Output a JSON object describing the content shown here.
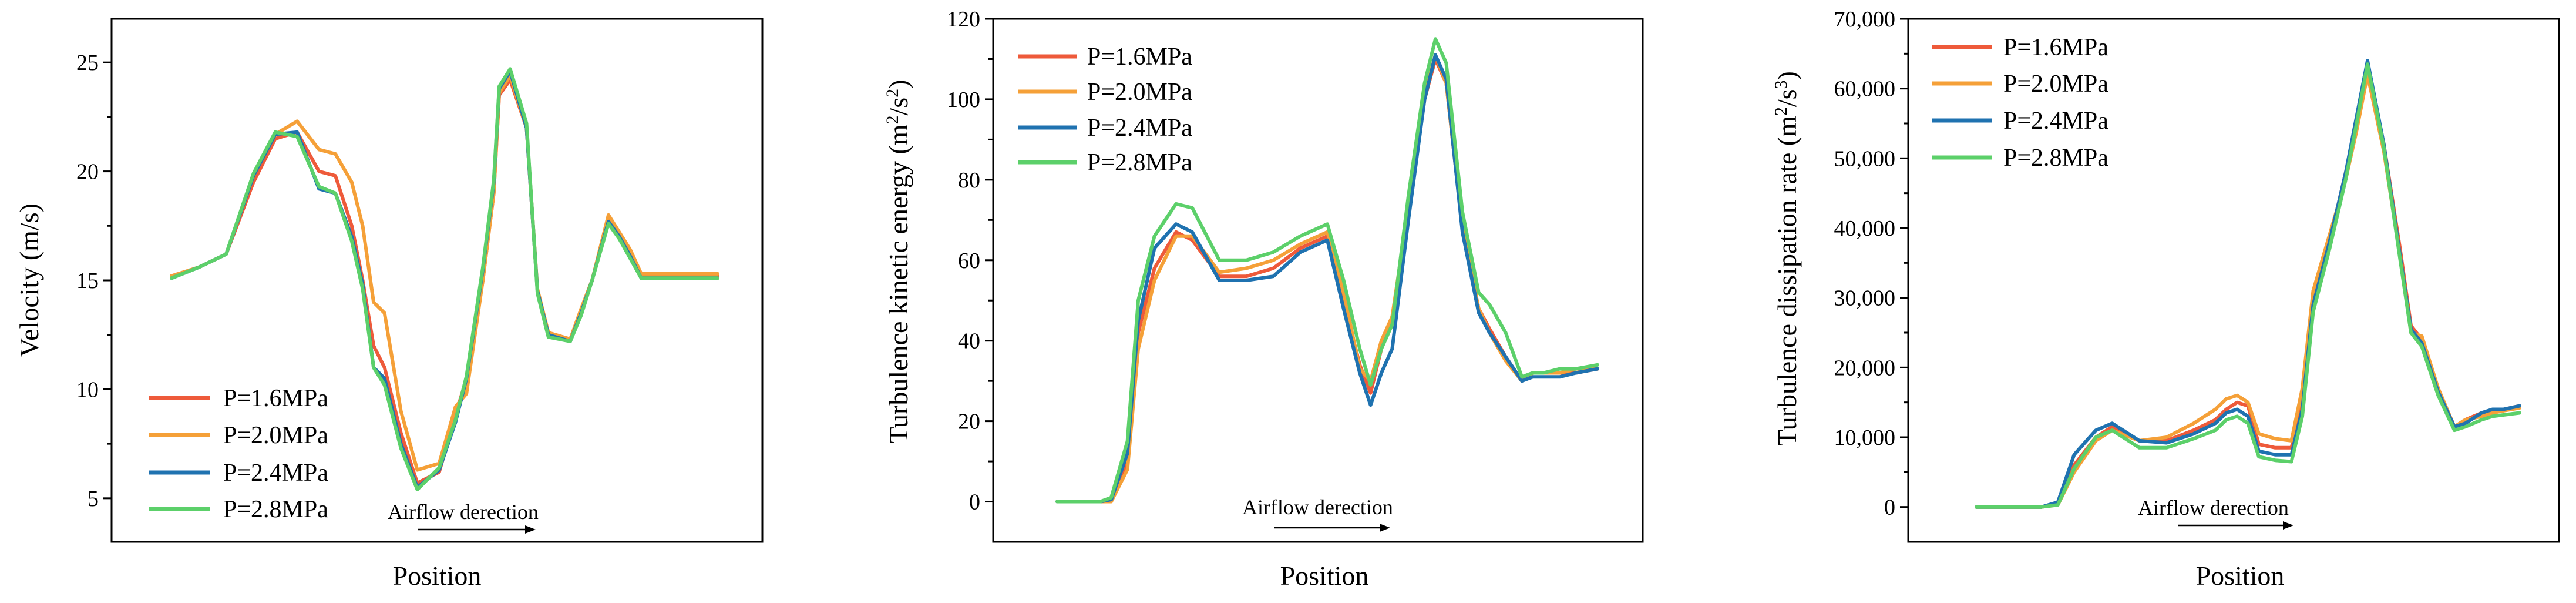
{
  "colors": {
    "P=1.6MPa": "#EE5A3A",
    "P=2.0MPa": "#F5A038",
    "P=2.4MPa": "#1F72B0",
    "P=2.8MPa": "#5CD06A",
    "axis": "#000000"
  },
  "chart_data": [
    {
      "type": "line",
      "title": "",
      "xlabel": "Position",
      "ylabel": "Velocity (m/s)",
      "ylim": [
        3,
        27
      ],
      "yticks": [
        5,
        10,
        15,
        20,
        25
      ],
      "ytick_labels": [
        "5",
        "10",
        "15",
        "20",
        "25"
      ],
      "xlim": [
        0,
        100
      ],
      "x_tick_labels": [],
      "legend": [
        "P=1.6MPa",
        "P=2.0MPa",
        "P=2.4MPa",
        "P=2.8MPa"
      ],
      "legend_position": "bottom-left",
      "annotation": "Airflow derection",
      "series": [
        {
          "name": "P=1.6MPa",
          "x": [
            0,
            5,
            10,
            15,
            19,
            23,
            27,
            30,
            33,
            35,
            37,
            39,
            42,
            45,
            49,
            52,
            54,
            57,
            59,
            60,
            62,
            65,
            67,
            69,
            73,
            75,
            77,
            80,
            82,
            84,
            86,
            88,
            90,
            92,
            95,
            97,
            100
          ],
          "y": [
            15.2,
            15.6,
            16.2,
            19.5,
            21.5,
            21.8,
            20,
            19.8,
            17.5,
            15,
            12,
            11,
            8,
            5.7,
            6.2,
            8.8,
            10.5,
            15,
            19,
            23.5,
            24.2,
            22,
            14.5,
            12.6,
            12.3,
            13.5,
            15,
            17.8,
            17,
            16.2,
            15.2,
            15.2,
            15.2,
            15.2,
            15.2,
            15.2,
            15.2
          ]
        },
        {
          "name": "P=2.0MPa",
          "x": [
            0,
            5,
            10,
            15,
            19,
            23,
            27,
            30,
            33,
            35,
            37,
            39,
            42,
            45,
            49,
            52,
            54,
            57,
            59,
            60,
            62,
            65,
            67,
            69,
            73,
            75,
            77,
            80,
            82,
            84,
            86,
            88,
            90,
            92,
            95,
            97,
            100
          ],
          "y": [
            15.2,
            15.6,
            16.2,
            19.8,
            21.7,
            22.3,
            21,
            20.8,
            19.5,
            17.5,
            14,
            13.5,
            9,
            6.3,
            6.6,
            9.2,
            9.8,
            15,
            19,
            23.6,
            24.4,
            22,
            14.6,
            12.6,
            12.3,
            13.7,
            15,
            18,
            17.2,
            16.4,
            15.3,
            15.3,
            15.3,
            15.3,
            15.3,
            15.3,
            15.3
          ]
        },
        {
          "name": "P=2.4MPa",
          "x": [
            0,
            5,
            10,
            15,
            19,
            23,
            27,
            30,
            33,
            35,
            37,
            39,
            42,
            45,
            49,
            52,
            54,
            57,
            59,
            60,
            62,
            65,
            67,
            69,
            73,
            75,
            77,
            80,
            82,
            84,
            86,
            88,
            90,
            92,
            95,
            97,
            100
          ],
          "y": [
            15.1,
            15.6,
            16.2,
            19.8,
            21.7,
            21.8,
            19.2,
            19,
            17,
            14.8,
            11,
            10.5,
            7.5,
            5.5,
            6.3,
            8.5,
            10.5,
            15.5,
            19.5,
            23.8,
            24.6,
            22,
            14.5,
            12.5,
            12.2,
            13.5,
            15,
            17.7,
            17,
            16.1,
            15.1,
            15.1,
            15.1,
            15.1,
            15.1,
            15.1,
            15.1
          ]
        },
        {
          "name": "P=2.8MPa",
          "x": [
            0,
            5,
            10,
            15,
            19,
            23,
            27,
            30,
            33,
            35,
            37,
            39,
            42,
            45,
            49,
            52,
            54,
            57,
            59,
            60,
            62,
            65,
            67,
            69,
            73,
            75,
            77,
            80,
            82,
            84,
            86,
            88,
            90,
            92,
            95,
            97,
            100
          ],
          "y": [
            15.1,
            15.6,
            16.2,
            19.9,
            21.8,
            21.6,
            19.3,
            19,
            16.8,
            14.6,
            11,
            10.2,
            7.3,
            5.4,
            6.4,
            8.6,
            10.6,
            15.6,
            19.6,
            23.9,
            24.7,
            22.2,
            14.4,
            12.4,
            12.2,
            13.4,
            15,
            17.6,
            16.9,
            16,
            15.1,
            15.1,
            15.1,
            15.1,
            15.1,
            15.1,
            15.1
          ]
        }
      ]
    },
    {
      "type": "line",
      "title": "",
      "xlabel": "Position",
      "ylabel": "Turbulence kinetic energy (m²/s²)",
      "ylim": [
        -10,
        120
      ],
      "yticks": [
        0,
        20,
        40,
        60,
        80,
        100,
        120
      ],
      "ytick_labels": [
        "0",
        "20",
        "40",
        "60",
        "80",
        "100",
        "120"
      ],
      "xlim": [
        0,
        100
      ],
      "x_tick_labels": [],
      "legend": [
        "P=1.6MPa",
        "P=2.0MPa",
        "P=2.4MPa",
        "P=2.8MPa"
      ],
      "legend_position": "top-left",
      "annotation": "Airflow derection",
      "series": [
        {
          "name": "P=1.6MPa",
          "x": [
            0,
            5,
            8,
            10,
            13,
            15,
            18,
            22,
            25,
            30,
            35,
            40,
            45,
            50,
            53,
            56,
            58,
            60,
            62,
            65,
            68,
            70,
            72,
            75,
            78,
            80,
            83,
            86,
            88,
            90,
            93,
            96,
            100
          ],
          "y": [
            0,
            0,
            0,
            0.5,
            10,
            42,
            58,
            67,
            65,
            56,
            56,
            58,
            63,
            66,
            50,
            34,
            27,
            38,
            45,
            72,
            100,
            110,
            104,
            68,
            48,
            43,
            36,
            30,
            32,
            32,
            32,
            32,
            33
          ]
        },
        {
          "name": "P=2.0MPa",
          "x": [
            0,
            5,
            8,
            10,
            13,
            15,
            18,
            22,
            25,
            30,
            35,
            40,
            45,
            50,
            53,
            56,
            58,
            60,
            62,
            65,
            68,
            70,
            72,
            75,
            78,
            80,
            83,
            86,
            88,
            90,
            93,
            96,
            100
          ],
          "y": [
            0,
            0,
            0,
            0,
            8,
            38,
            55,
            66,
            66,
            57,
            58,
            60,
            64,
            67,
            52,
            33,
            30,
            40,
            46,
            73,
            101,
            111,
            104,
            68,
            48,
            42,
            35,
            30,
            32,
            32,
            32,
            33,
            33
          ]
        },
        {
          "name": "P=2.4MPa",
          "x": [
            0,
            5,
            8,
            10,
            13,
            15,
            18,
            22,
            25,
            30,
            35,
            40,
            45,
            50,
            53,
            56,
            58,
            60,
            62,
            65,
            68,
            70,
            72,
            75,
            78,
            80,
            83,
            86,
            88,
            90,
            93,
            96,
            100
          ],
          "y": [
            0,
            0,
            0,
            0.5,
            12,
            45,
            63,
            69,
            67,
            55,
            55,
            56,
            62,
            65,
            48,
            32,
            24,
            32,
            38,
            70,
            100,
            111,
            105,
            67,
            47,
            42,
            36,
            30,
            31,
            31,
            31,
            32,
            33
          ]
        },
        {
          "name": "P=2.8MPa",
          "x": [
            0,
            5,
            8,
            10,
            13,
            15,
            18,
            22,
            25,
            30,
            35,
            40,
            45,
            50,
            53,
            56,
            58,
            60,
            62,
            65,
            68,
            70,
            72,
            75,
            78,
            80,
            83,
            86,
            88,
            90,
            93,
            96,
            100
          ],
          "y": [
            0,
            0,
            0,
            1,
            15,
            50,
            66,
            74,
            73,
            60,
            60,
            62,
            66,
            69,
            55,
            38,
            29,
            38,
            44,
            76,
            104,
            115,
            109,
            72,
            52,
            49,
            42,
            31,
            32,
            32,
            33,
            33,
            34
          ]
        }
      ]
    },
    {
      "type": "line",
      "title": "",
      "xlabel": "Position",
      "ylabel": "Turbulence dissipation rate (m²/s³)",
      "ylim": [
        -5000,
        70000
      ],
      "yticks": [
        0,
        10000,
        20000,
        30000,
        40000,
        50000,
        60000,
        70000
      ],
      "ytick_labels": [
        "0",
        "10,000",
        "20,000",
        "30,000",
        "40,000",
        "50,000",
        "60,000",
        "70,000"
      ],
      "xlim": [
        0,
        100
      ],
      "x_tick_labels": [],
      "legend": [
        "P=1.6MPa",
        "P=2.0MPa",
        "P=2.4MPa",
        "P=2.8MPa"
      ],
      "legend_position": "top-left",
      "annotation": "Airflow derection",
      "series": [
        {
          "name": "P=1.6MPa",
          "x": [
            0,
            5,
            10,
            12,
            15,
            18,
            22,
            25,
            30,
            35,
            40,
            44,
            46,
            48,
            50,
            52,
            55,
            58,
            60,
            62,
            65,
            68,
            70,
            72,
            75,
            78,
            80,
            82,
            85,
            88,
            90,
            93,
            95,
            97,
            100
          ],
          "y": [
            0,
            0,
            0,
            0,
            500,
            6000,
            10000,
            11500,
            9500,
            9500,
            11000,
            12500,
            14000,
            15000,
            14500,
            9000,
            8500,
            8500,
            15000,
            30000,
            38000,
            48000,
            55000,
            63000,
            52000,
            37000,
            26000,
            24000,
            17000,
            11500,
            12500,
            13500,
            13500,
            14000,
            14500
          ]
        },
        {
          "name": "P=2.0MPa",
          "x": [
            0,
            5,
            10,
            12,
            15,
            18,
            22,
            25,
            30,
            35,
            40,
            44,
            46,
            48,
            50,
            52,
            55,
            58,
            60,
            62,
            65,
            68,
            70,
            72,
            75,
            78,
            80,
            82,
            85,
            88,
            90,
            93,
            95,
            97,
            100
          ],
          "y": [
            0,
            0,
            0,
            0,
            300,
            5000,
            9500,
            11000,
            9500,
            10000,
            12000,
            14000,
            15500,
            16000,
            15000,
            10500,
            9800,
            9500,
            17000,
            31000,
            39000,
            47000,
            54000,
            62000,
            51000,
            36000,
            25000,
            24500,
            17000,
            11500,
            12500,
            13000,
            13500,
            13800,
            14200
          ]
        },
        {
          "name": "P=2.4MPa",
          "x": [
            0,
            5,
            10,
            12,
            15,
            18,
            22,
            25,
            30,
            35,
            40,
            44,
            46,
            48,
            50,
            52,
            55,
            58,
            60,
            62,
            65,
            68,
            70,
            72,
            75,
            78,
            80,
            82,
            85,
            88,
            90,
            93,
            95,
            97,
            100
          ],
          "y": [
            0,
            0,
            0,
            0,
            700,
            7500,
            11000,
            12000,
            9500,
            9200,
            10500,
            12000,
            13500,
            14000,
            13000,
            8000,
            7500,
            7500,
            14000,
            29000,
            38000,
            48000,
            56000,
            64000,
            52000,
            36000,
            25500,
            23500,
            16500,
            11500,
            12000,
            13500,
            14000,
            14000,
            14500
          ]
        },
        {
          "name": "P=2.8MPa",
          "x": [
            0,
            5,
            10,
            12,
            15,
            18,
            22,
            25,
            30,
            35,
            40,
            44,
            46,
            48,
            50,
            52,
            55,
            58,
            60,
            62,
            65,
            68,
            70,
            72,
            75,
            78,
            80,
            82,
            85,
            88,
            90,
            93,
            95,
            97,
            100
          ],
          "y": [
            0,
            0,
            0,
            0,
            300,
            5500,
            10000,
            11000,
            8500,
            8500,
            9800,
            11000,
            12500,
            13000,
            12000,
            7200,
            6700,
            6500,
            13000,
            28000,
            37000,
            47000,
            55000,
            63500,
            51500,
            35500,
            25000,
            23000,
            16000,
            11000,
            11500,
            12500,
            13000,
            13200,
            13500
          ]
        }
      ]
    }
  ]
}
